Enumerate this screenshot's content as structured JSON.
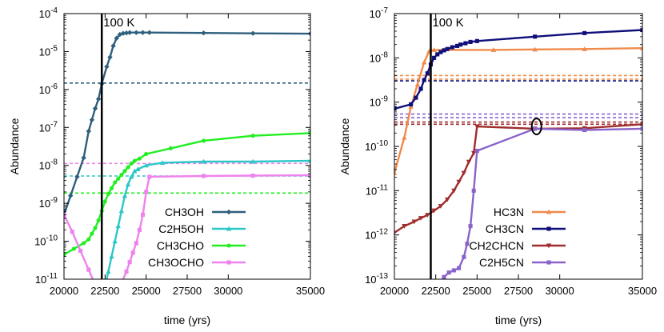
{
  "chart_data": [
    {
      "type": "line",
      "xlabel": "time (yrs)",
      "ylabel": "Abundance",
      "xlim": [
        20000,
        35000
      ],
      "ylim_log10": [
        -11,
        -4
      ],
      "yscale": "log",
      "x_ticks": [
        20000,
        22500,
        25000,
        27500,
        30000,
        35000
      ],
      "x_tick_labels": [
        "20000",
        "22500",
        "25000",
        "27500",
        "30000",
        "35000"
      ],
      "y_tick_exponents": [
        -11,
        -10,
        -9,
        -8,
        -7,
        -6,
        -5,
        -4
      ],
      "y_tick_base": "10",
      "vline": {
        "x": 22300,
        "label": "100 K"
      },
      "legend_position": "bottom-right",
      "series": [
        {
          "name": "CH3OH",
          "color": "#2e5f7c",
          "marker": "diamond",
          "points": [
            [
              20000,
              -9.3
            ],
            [
              20400,
              -8.8
            ],
            [
              20800,
              -8.3
            ],
            [
              21200,
              -7.8
            ],
            [
              21500,
              -7.1
            ],
            [
              21700,
              -6.8
            ],
            [
              21900,
              -6.5
            ],
            [
              22100,
              -6.25
            ],
            [
              22300,
              -5.85
            ],
            [
              22600,
              -5.4
            ],
            [
              22800,
              -5.15
            ],
            [
              23000,
              -4.85
            ],
            [
              23200,
              -4.65
            ],
            [
              23400,
              -4.55
            ],
            [
              23600,
              -4.52
            ],
            [
              23800,
              -4.51
            ],
            [
              24000,
              -4.5
            ],
            [
              24400,
              -4.5
            ],
            [
              24800,
              -4.5
            ],
            [
              25200,
              -4.5
            ],
            [
              28500,
              -4.51
            ],
            [
              31500,
              -4.52
            ],
            [
              35000,
              -4.53
            ]
          ],
          "dashed_level": -5.83
        },
        {
          "name": "C2H5OH",
          "color": "#2bc7c7",
          "marker": "triangle",
          "points": [
            [
              22500,
              -11.2
            ],
            [
              22700,
              -10.8
            ],
            [
              22900,
              -10.4
            ],
            [
              23100,
              -10.0
            ],
            [
              23300,
              -9.6
            ],
            [
              23500,
              -9.2
            ],
            [
              23700,
              -8.8
            ],
            [
              23900,
              -8.5
            ],
            [
              24100,
              -8.3
            ],
            [
              24300,
              -8.15
            ],
            [
              24500,
              -8.1
            ],
            [
              25000,
              -8.0
            ],
            [
              26000,
              -7.93
            ],
            [
              28500,
              -7.9
            ],
            [
              31500,
              -7.9
            ],
            [
              35000,
              -7.88
            ]
          ],
          "dashed_level": -8.28
        },
        {
          "name": "CH3CHO",
          "color": "#22ee22",
          "marker": "circle",
          "points": [
            [
              20000,
              -10.35
            ],
            [
              20600,
              -10.2
            ],
            [
              21200,
              -10.05
            ],
            [
              21500,
              -9.95
            ],
            [
              21700,
              -9.8
            ],
            [
              21900,
              -9.65
            ],
            [
              22100,
              -9.45
            ],
            [
              22300,
              -9.2
            ],
            [
              22500,
              -8.95
            ],
            [
              22700,
              -8.75
            ],
            [
              22900,
              -8.6
            ],
            [
              23100,
              -8.45
            ],
            [
              23300,
              -8.35
            ],
            [
              23500,
              -8.25
            ],
            [
              23700,
              -8.15
            ],
            [
              23900,
              -8.05
            ],
            [
              24100,
              -7.95
            ],
            [
              24300,
              -7.88
            ],
            [
              24600,
              -7.82
            ],
            [
              25000,
              -7.7
            ],
            [
              26500,
              -7.55
            ],
            [
              28500,
              -7.35
            ],
            [
              31500,
              -7.22
            ],
            [
              35000,
              -7.15
            ]
          ],
          "dashed_level": -8.73
        },
        {
          "name": "CH3OCHO",
          "color": "#ee82ee",
          "marker": "square",
          "points": [
            [
              20000,
              -9.3
            ],
            [
              20500,
              -9.75
            ],
            [
              21000,
              -10.25
            ],
            [
              21500,
              -10.75
            ],
            [
              21800,
              -11.05
            ],
            [
              23500,
              -11.1
            ],
            [
              23800,
              -10.8
            ],
            [
              24000,
              -10.55
            ],
            [
              24200,
              -10.3
            ],
            [
              24400,
              -10.05
            ],
            [
              24600,
              -9.7
            ],
            [
              24800,
              -9.3
            ],
            [
              25000,
              -8.7
            ],
            [
              25200,
              -8.3
            ],
            [
              28500,
              -8.28
            ],
            [
              31500,
              -8.27
            ],
            [
              35000,
              -8.26
            ]
          ],
          "dashed_level": -7.95
        }
      ]
    },
    {
      "type": "line",
      "xlabel": "time (yrs)",
      "ylabel": "Abundance",
      "xlim": [
        20000,
        35000
      ],
      "ylim_log10": [
        -13,
        -7
      ],
      "yscale": "log",
      "x_ticks": [
        20000,
        22500,
        25000,
        27500,
        30000,
        35000
      ],
      "x_tick_labels": [
        "20000",
        "22500",
        "25000",
        "27500",
        "30000",
        "35000"
      ],
      "y_tick_exponents": [
        -13,
        -12,
        -11,
        -10,
        -9,
        -8,
        -7
      ],
      "y_tick_base": "10",
      "vline": {
        "x": 22200,
        "label": "100 K"
      },
      "annotation": {
        "type": "ellipse",
        "x": 28600,
        "y_log10": -9.55
      },
      "legend_position": "bottom-right",
      "series": [
        {
          "name": "HC3N",
          "color": "#f08a4b",
          "marker": "triangle",
          "points": [
            [
              20000,
              -10.6
            ],
            [
              20600,
              -9.8
            ],
            [
              21000,
              -9.1
            ],
            [
              21400,
              -8.6
            ],
            [
              21800,
              -8.1
            ],
            [
              22100,
              -7.85
            ],
            [
              22400,
              -7.82
            ],
            [
              23000,
              -7.82
            ],
            [
              26000,
              -7.82
            ],
            [
              28500,
              -7.81
            ],
            [
              31500,
              -7.8
            ],
            [
              35000,
              -7.78
            ]
          ],
          "dashed_levels": [
            -8.4,
            -8.48
          ]
        },
        {
          "name": "CH3CN",
          "color": "#0f0f7a",
          "marker": "square",
          "points": [
            [
              20000,
              -9.15
            ],
            [
              21000,
              -9.05
            ],
            [
              21300,
              -8.9
            ],
            [
              21600,
              -8.7
            ],
            [
              21800,
              -8.5
            ],
            [
              22000,
              -8.35
            ],
            [
              22200,
              -8.15
            ],
            [
              22400,
              -8.0
            ],
            [
              22600,
              -7.92
            ],
            [
              22800,
              -7.87
            ],
            [
              23000,
              -7.83
            ],
            [
              23200,
              -7.8
            ],
            [
              23500,
              -7.76
            ],
            [
              23800,
              -7.73
            ],
            [
              24000,
              -7.7
            ],
            [
              24300,
              -7.67
            ],
            [
              24600,
              -7.64
            ],
            [
              25000,
              -7.62
            ],
            [
              28500,
              -7.52
            ],
            [
              31500,
              -7.44
            ],
            [
              35000,
              -7.37
            ]
          ],
          "dashed_level": -8.52
        },
        {
          "name": "CH2CHCN",
          "color": "#a02c2c",
          "marker": "triangle-down",
          "points": [
            [
              20000,
              -11.95
            ],
            [
              20600,
              -11.8
            ],
            [
              21200,
              -11.7
            ],
            [
              21600,
              -11.62
            ],
            [
              22000,
              -11.55
            ],
            [
              22400,
              -11.45
            ],
            [
              22800,
              -11.35
            ],
            [
              23200,
              -11.2
            ],
            [
              23600,
              -11.0
            ],
            [
              23900,
              -10.8
            ],
            [
              24200,
              -10.6
            ],
            [
              24500,
              -10.35
            ],
            [
              24800,
              -10.15
            ],
            [
              25000,
              -9.55
            ],
            [
              28500,
              -9.6
            ],
            [
              31500,
              -9.59
            ],
            [
              35000,
              -9.5
            ]
          ],
          "dashed_levels": [
            -9.5,
            -9.45
          ]
        },
        {
          "name": "C2H5CN",
          "color": "#8a63c9",
          "marker": "square",
          "points": [
            [
              22700,
              -13.1
            ],
            [
              23000,
              -12.95
            ],
            [
              23300,
              -12.85
            ],
            [
              23600,
              -12.8
            ],
            [
              23900,
              -12.75
            ],
            [
              24200,
              -12.5
            ],
            [
              24400,
              -12.2
            ],
            [
              24600,
              -11.8
            ],
            [
              24800,
              -11.0
            ],
            [
              25000,
              -10.1
            ],
            [
              28500,
              -9.6
            ],
            [
              31500,
              -9.63
            ],
            [
              35000,
              -9.6
            ]
          ],
          "dashed_levels": [
            -9.27,
            -9.35
          ]
        }
      ]
    }
  ]
}
